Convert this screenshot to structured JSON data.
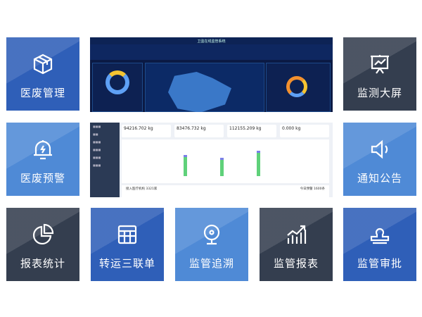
{
  "tiles": [
    {
      "label": "医废管理",
      "icon": "box-icon"
    },
    {
      "label": "监测大屏",
      "icon": "presentation-chart-icon"
    },
    {
      "label": "医废预警",
      "icon": "alarm-bell-icon"
    },
    {
      "label": "通知公告",
      "icon": "speaker-icon"
    },
    {
      "label": "报表统计",
      "icon": "pie-chart-icon"
    },
    {
      "label": "转运三联单",
      "icon": "table-grid-icon"
    },
    {
      "label": "监管追溯",
      "icon": "camera-icon"
    },
    {
      "label": "监管报表",
      "icon": "bar-trend-icon"
    },
    {
      "label": "监管审批",
      "icon": "stamp-icon"
    }
  ],
  "dashboard_preview": {
    "title": "卫监在线监管系统"
  },
  "admin_preview": {
    "cards": [
      {
        "value": "94216.702",
        "unit": "kg",
        "color": "#7b7fe8"
      },
      {
        "value": "83476.732",
        "unit": "kg",
        "color": "#f5b82e"
      },
      {
        "value": "112155.209",
        "unit": "kg",
        "color": "#5fd17a"
      },
      {
        "value": "0.000",
        "unit": "kg",
        "color": "#f08a6a"
      }
    ],
    "institutions": "接入医疗机构 3321家",
    "warnings": "今日预警 1600条"
  }
}
